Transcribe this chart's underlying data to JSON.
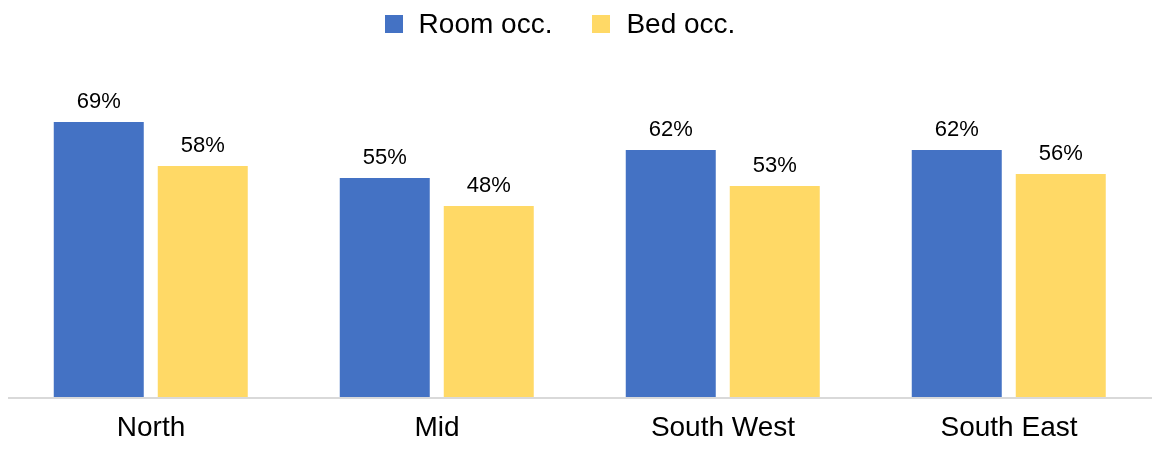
{
  "chart_data": {
    "type": "bar",
    "categories": [
      "North",
      "Mid",
      "South West",
      "South East"
    ],
    "series": [
      {
        "name": "Room occ.",
        "color": "#4472c4",
        "values": [
          69,
          55,
          62,
          62
        ],
        "value_labels": [
          "69%",
          "55%",
          "62%",
          "62%"
        ]
      },
      {
        "name": "Bed occ.",
        "color": "#ffd966",
        "values": [
          58,
          48,
          53,
          56
        ],
        "value_labels": [
          "58%",
          "48%",
          "53%",
          "56%"
        ]
      }
    ],
    "tick_labels": "x",
    "grid": false,
    "legend": "top"
  }
}
